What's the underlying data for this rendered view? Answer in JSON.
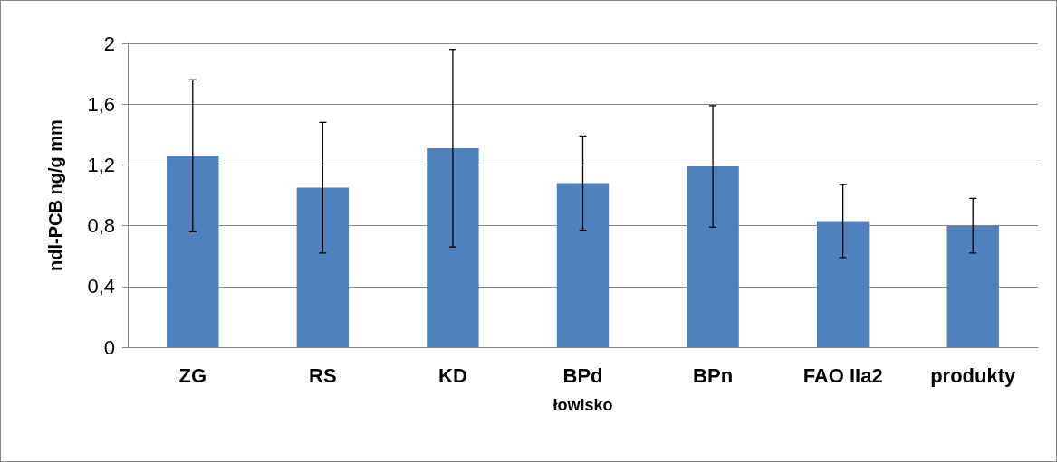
{
  "chart_data": {
    "type": "bar",
    "xlabel": "łowisko",
    "ylabel": "ndl-PCB ng/g mm",
    "categories": [
      "ZG",
      "RS",
      "KD",
      "BPd",
      "BPn",
      "FAO IIa2",
      "produkty"
    ],
    "series": [
      {
        "color": "#4f81bd",
        "values": [
          1.26,
          1.05,
          1.31,
          1.08,
          1.19,
          0.83,
          0.8
        ],
        "errors": [
          0.5,
          0.43,
          0.65,
          0.31,
          0.4,
          0.24,
          0.18
        ]
      }
    ],
    "ylim": [
      0,
      2
    ],
    "yticks": [
      0,
      {
        "value": 0.4,
        "label": "0,4"
      },
      {
        "value": 0.8,
        "label": "0,8"
      },
      {
        "value": 1.2,
        "label": "1,2"
      },
      {
        "value": 1.6,
        "label": "1,6"
      },
      2
    ],
    "grid": "y"
  }
}
